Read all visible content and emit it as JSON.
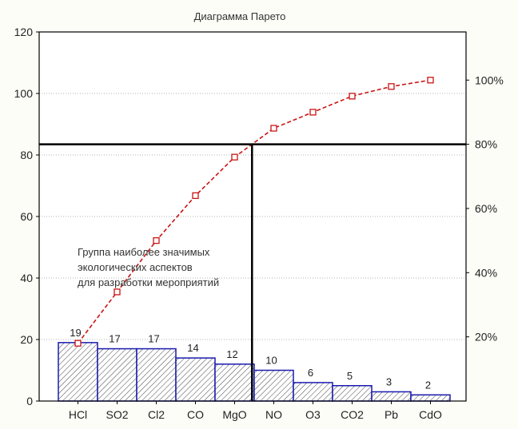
{
  "chart_data": {
    "type": "bar",
    "title": "Диаграмма Парето",
    "categories": [
      "HCl",
      "SO2",
      "Cl2",
      "CO",
      "MgO",
      "NO",
      "O3",
      "CO2",
      "Pb",
      "CdO"
    ],
    "values": [
      19,
      17,
      17,
      14,
      12,
      10,
      6,
      5,
      3,
      2
    ],
    "cumulative_percent": [
      18,
      34,
      50,
      64,
      76,
      85,
      90,
      95,
      98,
      100
    ],
    "ylim": [
      0,
      120
    ],
    "yticks": [
      0,
      20,
      40,
      60,
      80,
      100,
      120
    ],
    "y2lim": [
      0,
      115
    ],
    "y2ticks": [
      "20%",
      "40%",
      "60%",
      "80%",
      "100%"
    ],
    "y2tick_values": [
      20,
      40,
      60,
      80,
      100
    ],
    "threshold_percent": 80,
    "annotation": [
      "Группа наиболее значимых",
      "экологических аспектов",
      "для разработки мероприятий"
    ],
    "colors": {
      "bar_stroke": "#1a1ab0",
      "bar_hatch": "#333333",
      "curve": "#c81414",
      "threshold": "#000000"
    }
  }
}
